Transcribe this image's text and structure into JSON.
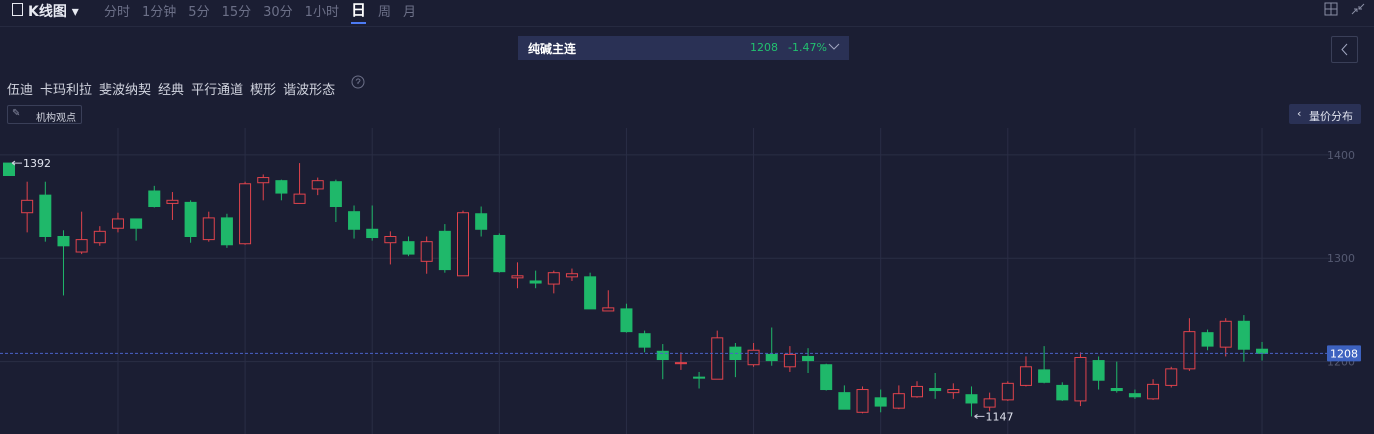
{
  "toolbar": {
    "title": "K线图",
    "periods": [
      "分时",
      "1分钟",
      "5分",
      "15分",
      "30分",
      "1小时",
      "日",
      "周",
      "月"
    ]
  },
  "quote": {
    "name": "纯碱主连",
    "price": 1208,
    "change": "-1.47%"
  },
  "drawing_tools": [
    "伍迪",
    "卡玛利拉",
    "斐波纳契",
    "经典",
    "平行通道",
    "楔形",
    "谐波形态"
  ],
  "buttons": {
    "views": "机构观点",
    "volume_profile": "量价分布"
  },
  "chart_data": {
    "type": "candlestick",
    "open": [
      1392,
      1344,
      1361,
      1321,
      1306,
      1315,
      1329,
      1338,
      1365,
      1353,
      1354,
      1318,
      1339,
      1314,
      1373,
      1375,
      1353,
      1367,
      1374,
      1345,
      1328,
      1315,
      1316,
      1297,
      1326,
      1283,
      1343,
      1322,
      1281,
      1278,
      1275,
      1282,
      1282,
      1249,
      1251,
      1227,
      1210,
      1198,
      1185,
      1183,
      1214,
      1197,
      1207,
      1195,
      1205,
      1197,
      1170,
      1151,
      1165,
      1155,
      1166,
      1174,
      1170,
      1168,
      1156,
      1163,
      1177,
      1192,
      1177,
      1162,
      1201,
      1174,
      1169,
      1164,
      1177,
      1193,
      1228,
      1214,
      1239,
      1212
    ],
    "high": [
      1392,
      1374,
      1374,
      1327,
      1345,
      1331,
      1344,
      1338,
      1370,
      1364,
      1356,
      1345,
      1343,
      1374,
      1381,
      1376,
      1392,
      1378,
      1376,
      1351,
      1351,
      1326,
      1321,
      1321,
      1333,
      1346,
      1350,
      1324,
      1296,
      1288,
      1288,
      1290,
      1286,
      1269,
      1256,
      1230,
      1217,
      1209,
      1190,
      1230,
      1218,
      1218,
      1233,
      1215,
      1213,
      1198,
      1177,
      1176,
      1173,
      1177,
      1181,
      1189,
      1179,
      1176,
      1170,
      1181,
      1205,
      1215,
      1180,
      1209,
      1205,
      1200,
      1173,
      1183,
      1195,
      1242,
      1231,
      1242,
      1245,
      1219
    ],
    "low": [
      1380,
      1325,
      1316,
      1264,
      1304,
      1312,
      1325,
      1317,
      1349,
      1337,
      1315,
      1316,
      1310,
      1313,
      1356,
      1356,
      1353,
      1361,
      1335,
      1319,
      1317,
      1294,
      1302,
      1285,
      1286,
      1283,
      1321,
      1286,
      1271,
      1271,
      1266,
      1278,
      1251,
      1249,
      1228,
      1209,
      1183,
      1192,
      1174,
      1183,
      1185,
      1195,
      1196,
      1190,
      1189,
      1172,
      1154,
      1150,
      1151,
      1154,
      1165,
      1164,
      1164,
      1147,
      1152,
      1162,
      1176,
      1179,
      1162,
      1157,
      1173,
      1170,
      1164,
      1163,
      1175,
      1191,
      1211,
      1205,
      1200,
      1201
    ],
    "close": [
      1380,
      1356,
      1321,
      1312,
      1318,
      1326,
      1338,
      1329,
      1350,
      1356,
      1321,
      1339,
      1313,
      1372,
      1378,
      1363,
      1362,
      1375,
      1350,
      1328,
      1320,
      1321,
      1304,
      1316,
      1289,
      1344,
      1328,
      1287,
      1283,
      1276,
      1286,
      1285,
      1251,
      1252,
      1229,
      1214,
      1202,
      1199,
      1184,
      1223,
      1202,
      1211,
      1201,
      1207,
      1201,
      1173,
      1154,
      1173,
      1157,
      1169,
      1176,
      1172,
      1173,
      1160,
      1164,
      1179,
      1195,
      1180,
      1163,
      1204,
      1182,
      1172,
      1166,
      1178,
      1193,
      1229,
      1215,
      1239,
      1212,
      1208
    ],
    "up_color": "#e0434c",
    "down_color": "#1fb86a",
    "ylim": [
      1130,
      1424
    ],
    "yticks": [
      1200,
      1300,
      1400
    ],
    "grid": true,
    "max_label": 1392,
    "min_label": 1147,
    "last_price": 1208
  }
}
